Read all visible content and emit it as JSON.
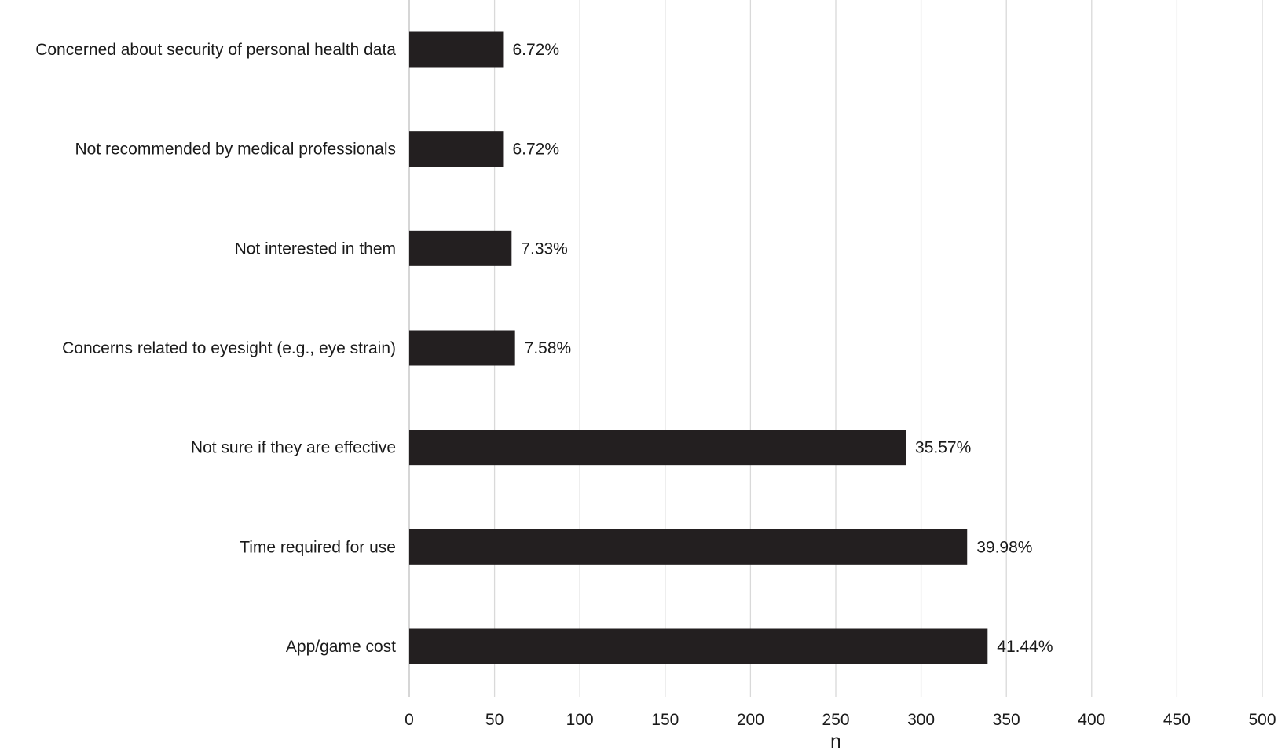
{
  "chart_data": {
    "type": "bar",
    "orientation": "horizontal",
    "categories": [
      "Concerned about security of personal health data",
      "Not recommended by medical professionals",
      "Not interested in them",
      "Concerns related to eyesight (e.g., eye strain)",
      "Not sure if they are effective",
      "Time required for use",
      "App/game cost"
    ],
    "values": [
      55,
      55,
      60,
      62,
      291,
      327,
      339
    ],
    "data_labels": [
      "6.72%",
      "6.72%",
      "7.33%",
      "7.58%",
      "35.57%",
      "39.98%",
      "41.44%"
    ],
    "xlabel": "n",
    "ylabel": "",
    "xlim": [
      0,
      500
    ],
    "x_ticks": [
      0,
      50,
      100,
      150,
      200,
      250,
      300,
      350,
      400,
      450,
      500
    ],
    "grid": "vertical",
    "legend": "none",
    "bar_color": "#231f20"
  }
}
